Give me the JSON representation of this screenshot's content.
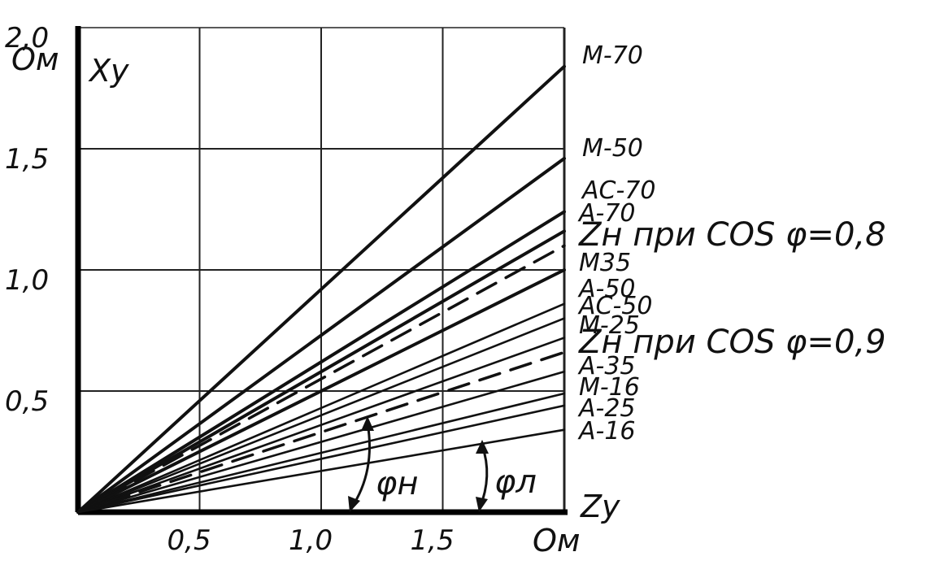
{
  "chart_data": {
    "type": "line",
    "title": "",
    "xlabel": "Zу",
    "ylabel": "Xу",
    "x_unit": "Ом",
    "y_unit": "Ом",
    "xlim": [
      0,
      2.0
    ],
    "ylim": [
      0,
      2.0
    ],
    "x_ticks": [
      "0,5",
      "1,0",
      "1,5"
    ],
    "y_ticks": [
      "0,5",
      "1,0",
      "1,5",
      "2,0"
    ],
    "grid": true,
    "legend": "labels at right end of lines",
    "series": [
      {
        "name": "M-70",
        "x": [
          0,
          2.0
        ],
        "y": [
          0,
          1.84
        ],
        "style": "solid"
      },
      {
        "name": "M-50",
        "x": [
          0,
          2.0
        ],
        "y": [
          0,
          1.46
        ],
        "style": "solid"
      },
      {
        "name": "AC-70",
        "x": [
          0,
          2.0
        ],
        "y": [
          0,
          1.24
        ],
        "style": "solid"
      },
      {
        "name": "A-70",
        "x": [
          0,
          2.0
        ],
        "y": [
          0,
          1.16
        ],
        "style": "solid"
      },
      {
        "name": "Zн при COS φ=0,8",
        "x": [
          0,
          2.0
        ],
        "y": [
          0,
          1.1
        ],
        "style": "dashed"
      },
      {
        "name": "M35",
        "x": [
          0,
          2.0
        ],
        "y": [
          0,
          1.0
        ],
        "style": "solid"
      },
      {
        "name": "A-50",
        "x": [
          0,
          2.0
        ],
        "y": [
          0,
          0.86
        ],
        "style": "solid"
      },
      {
        "name": "AC-50",
        "x": [
          0,
          2.0
        ],
        "y": [
          0,
          0.8
        ],
        "style": "solid"
      },
      {
        "name": "M-25",
        "x": [
          0,
          2.0
        ],
        "y": [
          0,
          0.72
        ],
        "style": "solid"
      },
      {
        "name": "Zн при COS φ=0,9",
        "x": [
          0,
          2.0
        ],
        "y": [
          0,
          0.66
        ],
        "style": "dashed"
      },
      {
        "name": "A-35",
        "x": [
          0,
          2.0
        ],
        "y": [
          0,
          0.58
        ],
        "style": "solid"
      },
      {
        "name": "M-16",
        "x": [
          0,
          2.0
        ],
        "y": [
          0,
          0.49
        ],
        "style": "solid"
      },
      {
        "name": "A-25",
        "x": [
          0,
          2.0
        ],
        "y": [
          0,
          0.44
        ],
        "style": "solid"
      },
      {
        "name": "A-16",
        "x": [
          0,
          2.0
        ],
        "y": [
          0,
          0.34
        ],
        "style": "solid"
      }
    ],
    "annotations": [
      "φн",
      "φл"
    ]
  }
}
